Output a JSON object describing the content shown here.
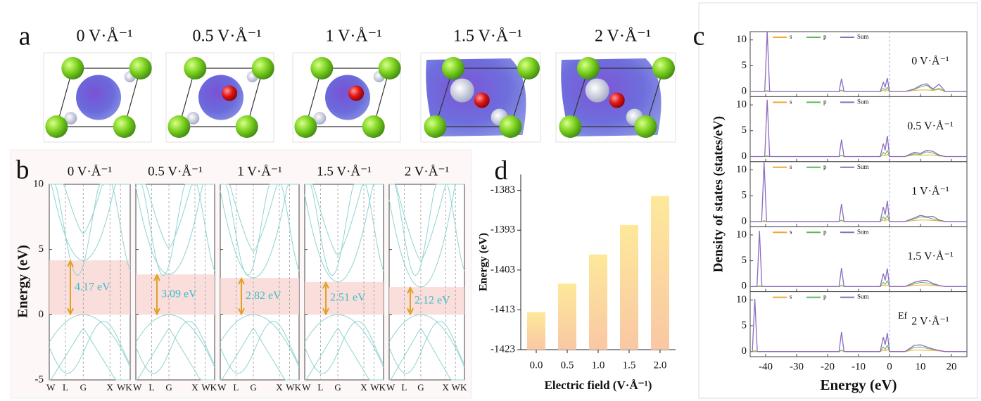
{
  "panel_labels": {
    "a": "a",
    "b": "b",
    "c": "c",
    "d": "d"
  },
  "structures": {
    "titles": [
      "0 V·Å⁻¹",
      "0.5 V·Å⁻¹",
      "1 V·Å⁻¹",
      "1.5 V·Å⁻¹",
      "2 V·Å⁻¹"
    ]
  },
  "chart_data": [
    {
      "type": "band",
      "ylabel": "Energy (eV)",
      "ylim": [
        -5,
        10
      ],
      "yticks": [
        -5,
        0,
        5,
        10
      ],
      "kpoints": [
        "W",
        "L",
        "G",
        "X",
        "WK"
      ],
      "titles": [
        "0 V·Å⁻¹",
        "0.5 V·Å⁻¹",
        "1 V·Å⁻¹",
        "1.5 V·Å⁻¹",
        "2 V·Å⁻¹"
      ],
      "gaps": [
        4.17,
        3.09,
        2.82,
        2.51,
        2.12
      ],
      "value_labels": [
        "4.17 eV",
        "3.09 eV",
        "2.82 eV",
        "2.51 eV",
        "2.12 eV"
      ]
    },
    {
      "type": "bar",
      "categories": [
        "0.0",
        "0.5",
        "1.0",
        "1.5",
        "2.0"
      ],
      "values": [
        -1413.6,
        -1406.4,
        -1399.1,
        -1391.7,
        -1384.4
      ],
      "xlabel": "Electric field (V·Å⁻¹)",
      "ylabel": "Energy (eV)",
      "ylim": [
        -1423,
        -1379
      ],
      "yticks": [
        -1423,
        -1413,
        -1403,
        -1393,
        -1383
      ]
    },
    {
      "type": "dos",
      "xlabel": "Energy (eV)",
      "ylabel": "Density of states (states/eV)",
      "xlim": [
        -45,
        25
      ],
      "xticks": [
        -40,
        -30,
        -20,
        -10,
        0,
        10,
        20
      ],
      "ylim": [
        -1,
        11.6
      ],
      "yticks": [
        0,
        5,
        10
      ],
      "ef_label": "Ef",
      "panels": [
        {
          "title": "0 V·Å⁻¹",
          "x": [
            -45,
            -40.3,
            -39.5,
            -38.7,
            -16.3,
            -15.5,
            -14.7,
            -3,
            -2,
            -1.4,
            -0.7,
            0,
            5,
            8,
            10,
            12,
            14,
            16,
            18,
            25
          ],
          "series": [
            {
              "name": "s",
              "color": "#f0a830",
              "values": [
                0,
                0,
                0.2,
                0,
                0,
                0.3,
                0,
                0,
                0.2,
                0.1,
                0.3,
                0,
                0,
                0.2,
                0.3,
                0.3,
                0.2,
                0.4,
                0,
                0
              ]
            },
            {
              "name": "p",
              "color": "#5cb85c",
              "values": [
                0,
                0,
                0,
                0,
                0,
                0.2,
                0,
                0,
                0.6,
                0.3,
                0.8,
                0,
                0,
                0.4,
                0.9,
                1.2,
                0.3,
                0.6,
                0,
                0
              ]
            },
            {
              "name": "Sum",
              "color": "#8e6bbf",
              "values": [
                0,
                0,
                11.7,
                0,
                0,
                2.5,
                0,
                0,
                1.8,
                0.9,
                2.6,
                0,
                0,
                0.5,
                1.2,
                1.5,
                0.5,
                1.4,
                0,
                0
              ]
            }
          ]
        },
        {
          "title": "0.5 V·Å⁻¹",
          "x": [
            -45,
            -40.3,
            -39.5,
            -38.7,
            -16.3,
            -15.5,
            -14.7,
            -3,
            -2,
            -1.4,
            -0.7,
            0,
            5,
            8,
            10,
            12,
            14,
            16,
            18,
            25
          ],
          "series": [
            {
              "name": "s",
              "color": "#f0a830",
              "values": [
                0,
                0,
                0.2,
                0,
                0,
                0.3,
                0,
                0,
                0.3,
                0.1,
                0.4,
                0,
                0,
                0.3,
                0.2,
                0.3,
                0.3,
                0.1,
                0,
                0
              ]
            },
            {
              "name": "p",
              "color": "#5cb85c",
              "values": [
                0,
                0,
                0,
                0,
                0,
                0.2,
                0,
                0,
                0.8,
                0.4,
                1.2,
                0,
                0,
                0.5,
                0.4,
                0.9,
                0.7,
                0.2,
                0,
                0
              ]
            },
            {
              "name": "Sum",
              "color": "#8e6bbf",
              "values": [
                0,
                0,
                11,
                0,
                0,
                3.3,
                0,
                0,
                2.5,
                1.2,
                4,
                0,
                0,
                0.8,
                0.6,
                1.2,
                1,
                0.3,
                0,
                0
              ]
            }
          ]
        },
        {
          "title": "1 V·Å⁻¹",
          "x": [
            -45,
            -41.3,
            -40.5,
            -39.7,
            -16.3,
            -15.5,
            -14.7,
            -3,
            -2,
            -1.4,
            -0.7,
            0,
            5,
            8,
            10,
            12,
            14,
            16,
            18,
            25
          ],
          "series": [
            {
              "name": "s",
              "color": "#f0a830",
              "values": [
                0,
                0,
                0.2,
                0,
                0,
                0.3,
                0,
                0,
                0.3,
                0.1,
                0.4,
                0,
                0,
                0.2,
                0.3,
                0.3,
                0.2,
                0.1,
                0,
                0
              ]
            },
            {
              "name": "p",
              "color": "#5cb85c",
              "values": [
                0,
                0,
                0,
                0,
                0,
                0.2,
                0,
                0,
                0.9,
                0.4,
                1.2,
                0,
                0,
                0.5,
                0.9,
                0.8,
                0.5,
                0.2,
                0,
                0
              ]
            },
            {
              "name": "Sum",
              "color": "#8e6bbf",
              "values": [
                0,
                0,
                11.5,
                0,
                0,
                3.4,
                0,
                0,
                2.8,
                1.3,
                4,
                0,
                0,
                0.7,
                1.2,
                0.9,
                1,
                0.3,
                0,
                0
              ]
            }
          ]
        },
        {
          "title": "1.5 V·Å⁻¹",
          "x": [
            -45,
            -42.8,
            -42,
            -41.2,
            -16.3,
            -15.5,
            -14.7,
            -3,
            -2,
            -1.4,
            -0.7,
            0,
            5,
            8,
            10,
            12,
            14,
            16,
            18,
            25
          ],
          "series": [
            {
              "name": "s",
              "color": "#f0a830",
              "values": [
                0,
                0,
                0.2,
                0,
                0,
                0.3,
                0,
                0,
                0.3,
                0.1,
                0.3,
                0,
                0,
                0.2,
                0.3,
                0.3,
                0.2,
                0.1,
                0,
                0
              ]
            },
            {
              "name": "p",
              "color": "#5cb85c",
              "values": [
                0,
                0,
                0,
                0,
                0,
                0.2,
                0,
                0,
                0.8,
                0.4,
                1.1,
                0,
                0,
                0.5,
                0.8,
                0.7,
                0.4,
                0.2,
                0,
                0
              ]
            },
            {
              "name": "Sum",
              "color": "#8e6bbf",
              "values": [
                0,
                0,
                10.8,
                0,
                0,
                3.6,
                0,
                0,
                2.5,
                1.2,
                3.5,
                0,
                0,
                0.8,
                1.1,
                1.2,
                0.6,
                0.2,
                0,
                0
              ]
            }
          ]
        },
        {
          "title": "2 V·Å⁻¹",
          "x": [
            -45,
            -44.3,
            -43.5,
            -42.7,
            -16.3,
            -15.5,
            -14.7,
            -3,
            -2,
            -1.4,
            -0.7,
            0,
            5,
            8,
            10,
            12,
            14,
            16,
            18,
            25
          ],
          "series": [
            {
              "name": "s",
              "color": "#f0a830",
              "values": [
                0,
                0,
                0.2,
                0,
                0,
                0.3,
                0,
                0,
                0.3,
                0.1,
                0.4,
                0,
                0,
                0.3,
                0.3,
                0.2,
                0.2,
                0.1,
                0,
                0
              ]
            },
            {
              "name": "p",
              "color": "#5cb85c",
              "values": [
                0,
                0,
                0,
                0,
                0,
                0.2,
                0,
                0,
                0.9,
                0.4,
                1.2,
                0,
                0,
                0.8,
                0.9,
                0.6,
                0.4,
                0.2,
                0,
                0
              ]
            },
            {
              "name": "Sum",
              "color": "#8e6bbf",
              "values": [
                0,
                0,
                10.2,
                0,
                0,
                3.8,
                0,
                0,
                2.8,
                1.3,
                3.6,
                0,
                0,
                1.2,
                1.3,
                0.9,
                0.5,
                0.2,
                0,
                0
              ]
            }
          ]
        }
      ]
    }
  ]
}
